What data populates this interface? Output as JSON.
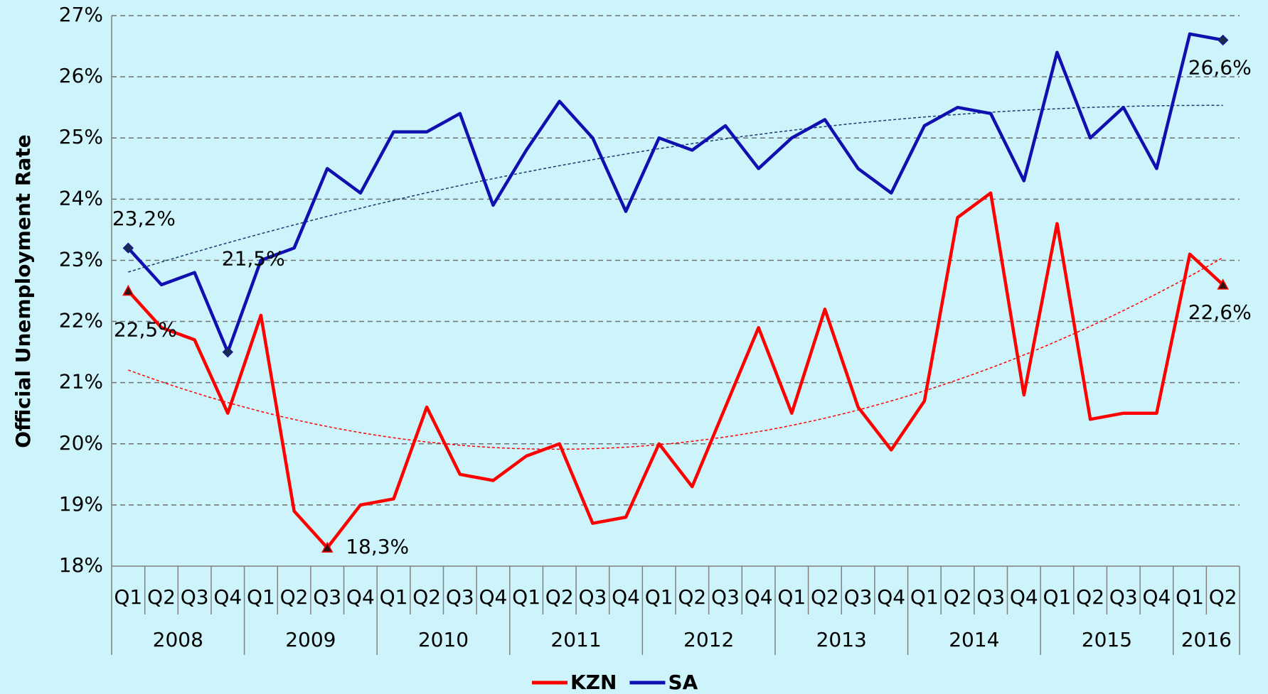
{
  "chart_data": {
    "type": "line",
    "y_label": "Official Unemployment Rate",
    "categories": [
      "Q1",
      "Q2",
      "Q3",
      "Q4",
      "Q1",
      "Q2",
      "Q3",
      "Q4",
      "Q1",
      "Q2",
      "Q3",
      "Q4",
      "Q1",
      "Q2",
      "Q3",
      "Q4",
      "Q1",
      "Q2",
      "Q3",
      "Q4",
      "Q1",
      "Q2",
      "Q3",
      "Q4",
      "Q1",
      "Q2",
      "Q3",
      "Q4",
      "Q1",
      "Q2",
      "Q3",
      "Q4",
      "Q1",
      "Q2"
    ],
    "groups": [
      "2008",
      "2009",
      "2010",
      "2011",
      "2012",
      "2013",
      "2014",
      "2015",
      "2016"
    ],
    "series": [
      {
        "name": "KZN",
        "color": "#ff0000",
        "marker": "triangle",
        "trendline": "polynomial",
        "values": [
          22.5,
          21.9,
          21.7,
          20.5,
          22.1,
          18.9,
          18.3,
          19.0,
          19.1,
          20.6,
          19.5,
          19.4,
          19.8,
          20.0,
          18.7,
          18.8,
          20.0,
          19.3,
          20.6,
          21.9,
          20.5,
          22.2,
          20.6,
          19.9,
          20.7,
          23.7,
          24.1,
          20.8,
          23.6,
          20.4,
          20.5,
          20.5,
          23.1,
          22.6
        ],
        "value_labels": [
          "22,5%",
          null,
          null,
          null,
          null,
          null,
          "18,3%",
          null,
          null,
          null,
          null,
          null,
          null,
          null,
          null,
          null,
          null,
          null,
          null,
          null,
          null,
          null,
          null,
          null,
          null,
          null,
          null,
          null,
          null,
          null,
          null,
          null,
          null,
          "22,6%"
        ]
      },
      {
        "name": "SA",
        "color": "#1010b0",
        "marker": "diamond",
        "trendline": "polynomial",
        "values": [
          23.2,
          22.6,
          22.8,
          21.5,
          23.0,
          23.2,
          24.5,
          24.1,
          25.1,
          25.1,
          25.4,
          23.9,
          24.8,
          25.6,
          25.0,
          23.8,
          25.0,
          24.8,
          25.2,
          24.5,
          25.0,
          25.3,
          24.5,
          24.1,
          25.2,
          25.5,
          25.4,
          24.3,
          26.4,
          25.0,
          25.5,
          24.5,
          26.7,
          26.6
        ],
        "value_labels": [
          "23,2%",
          null,
          null,
          "21,5%",
          null,
          null,
          null,
          null,
          null,
          null,
          null,
          null,
          null,
          null,
          null,
          null,
          null,
          null,
          null,
          null,
          null,
          null,
          null,
          null,
          null,
          null,
          null,
          null,
          null,
          null,
          null,
          null,
          null,
          "26,6%"
        ]
      }
    ],
    "ylim": [
      18,
      27
    ],
    "yticks": [
      {
        "value": 18,
        "label": "18%"
      },
      {
        "value": 19,
        "label": "19%"
      },
      {
        "value": 20,
        "label": "20%"
      },
      {
        "value": 21,
        "label": "21%"
      },
      {
        "value": 22,
        "label": "22%"
      },
      {
        "value": 23,
        "label": "23%"
      },
      {
        "value": 24,
        "label": "24%"
      },
      {
        "value": 25,
        "label": "25%"
      },
      {
        "value": 26,
        "label": "26%"
      },
      {
        "value": 27,
        "label": "27%"
      }
    ],
    "grid": true,
    "legend": "bottom"
  }
}
